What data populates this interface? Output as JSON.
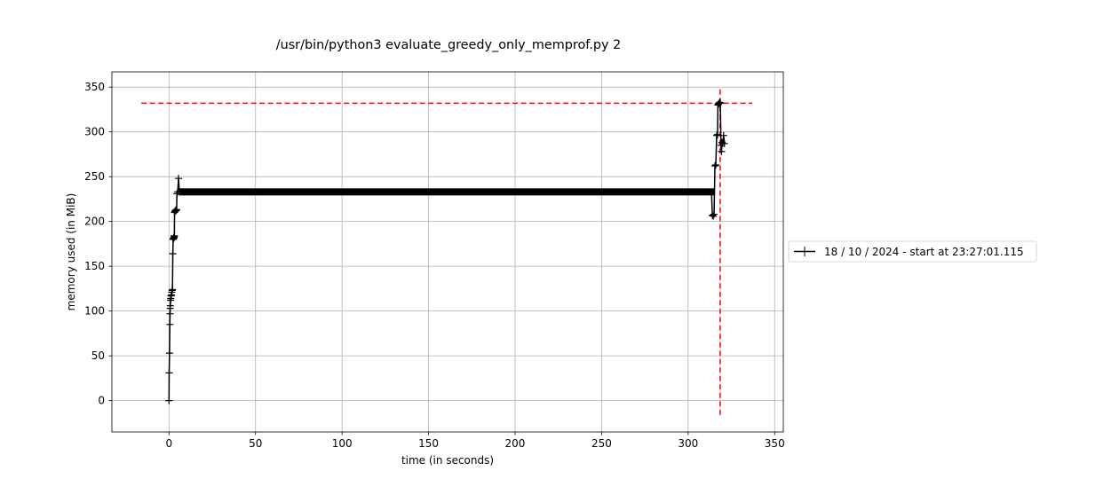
{
  "chart_data": {
    "type": "line",
    "title": "/usr/bin/python3 evaluate_greedy_only_memprof.py 2",
    "xlabel": "time (in seconds)",
    "ylabel": "memory used (in MiB)",
    "xlim": [
      -33,
      355
    ],
    "ylim": [
      -35,
      367
    ],
    "xticks": [
      0,
      50,
      100,
      150,
      200,
      250,
      300,
      350
    ],
    "yticks": [
      0,
      50,
      100,
      150,
      200,
      250,
      300,
      350
    ],
    "grid": true,
    "legend_position": "right, outside plot",
    "series": [
      {
        "name": "18 / 10 / 2024 - start at 23:27:01.115",
        "color": "#000000",
        "marker": "+",
        "x": [
          0,
          0.1,
          0.3,
          0.5,
          0.6,
          0.7,
          0.8,
          0.9,
          1.0,
          1.2,
          1.4,
          1.6,
          1.8,
          2.0,
          2.2,
          2.4,
          2.6,
          2.7,
          2.8,
          2.9,
          3.0,
          3.1,
          3.2,
          3.4,
          3.6,
          4.0,
          4.1,
          4.2,
          4.3,
          4.4,
          4.6,
          5.0,
          5.5,
          6.0,
          316,
          318,
          321
        ],
        "values": [
          0,
          31,
          53,
          85,
          97,
          103,
          106,
          112,
          114,
          117,
          118,
          121,
          123,
          124,
          164,
          180,
          181,
          181,
          182,
          182,
          183,
          184,
          210,
          211,
          212,
          212,
          213,
          213,
          213,
          213,
          231,
          233,
          248,
          233,
          233,
          233,
          233
        ],
        "segments": [
          {
            "x_start": 6,
            "x_end": 315,
            "value": 233,
            "dense_markers": true
          }
        ],
        "tail_x": [
          313.5,
          314,
          314.5,
          315,
          315.5,
          316,
          316.5,
          317,
          317.2,
          317.5,
          318,
          318.3,
          318.6,
          319,
          319.3,
          319.6,
          320,
          320.5,
          321
        ],
        "tail_values": [
          233,
          207,
          206,
          208,
          262,
          263,
          296,
          297,
          330,
          331,
          332,
          333,
          332,
          285,
          278,
          288,
          287,
          296,
          287
        ]
      },
      {
        "name": "",
        "color": "#ff0000",
        "style": "dashed",
        "kind": "hline",
        "y": 332,
        "x_range": [
          -16,
          337
        ]
      },
      {
        "name": "",
        "color": "#ff0000",
        "style": "dashed",
        "kind": "vline",
        "x": 318.5,
        "y_range": [
          -16,
          350
        ]
      }
    ]
  }
}
